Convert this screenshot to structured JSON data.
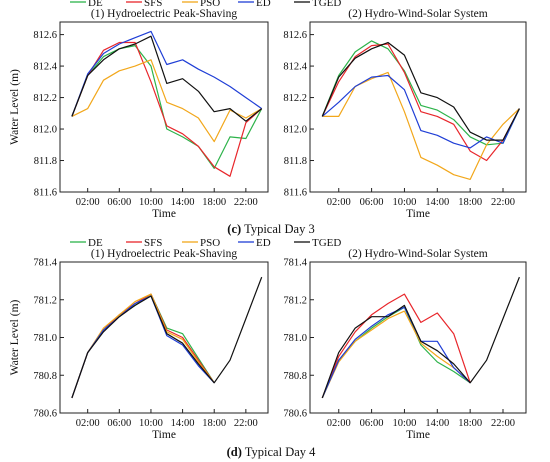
{
  "figure_captions": [
    {
      "letter": "(c)",
      "text": " Typical Day 3"
    },
    {
      "letter": "(d)",
      "text": " Typical Day 4"
    }
  ],
  "chart_data": [
    {
      "type": "line",
      "title": "(1) Hydroelectric Peak-Shaving",
      "xlabel": "Time",
      "ylabel": "Water Level (m)",
      "xticks": [
        "02:00",
        "06:00",
        "10:00",
        "14:00",
        "18:00",
        "22:00"
      ],
      "yticks": [
        "811.6",
        "811.8",
        "812.0",
        "812.2",
        "812.4",
        "812.6"
      ],
      "ylim": [
        811.6,
        812.68
      ],
      "legend": [
        "DE",
        "SFS",
        "PSO",
        "ED",
        "TGED"
      ],
      "x": [
        0,
        2,
        4,
        6,
        8,
        10,
        12,
        14,
        16,
        18,
        20,
        22,
        24
      ],
      "series": [
        {
          "name": "DE",
          "color": "#2db34a",
          "values": [
            812.08,
            812.34,
            812.46,
            812.51,
            812.53,
            812.4,
            812.0,
            811.95,
            811.89,
            811.75,
            811.95,
            811.94,
            812.13
          ]
        },
        {
          "name": "SFS",
          "color": "#e8262b",
          "values": [
            812.08,
            812.34,
            812.5,
            812.55,
            812.55,
            812.3,
            812.02,
            811.97,
            811.89,
            811.76,
            811.7,
            812.04,
            812.13
          ]
        },
        {
          "name": "PSO",
          "color": "#f2a71b",
          "values": [
            812.08,
            812.13,
            812.31,
            812.37,
            812.4,
            812.44,
            812.17,
            812.13,
            812.07,
            811.92,
            812.12,
            812.07,
            812.13
          ]
        },
        {
          "name": "ED",
          "color": "#1f3ed6",
          "values": [
            812.08,
            812.35,
            812.48,
            812.54,
            812.58,
            812.62,
            812.41,
            812.44,
            812.38,
            812.33,
            812.27,
            812.2,
            812.13
          ]
        },
        {
          "name": "TGED",
          "color": "#111111",
          "values": [
            812.08,
            812.34,
            812.44,
            812.51,
            812.54,
            812.59,
            812.29,
            812.32,
            812.24,
            812.11,
            812.13,
            812.05,
            812.13
          ]
        }
      ]
    },
    {
      "type": "line",
      "title": "(2) Hydro-Wind-Solar System",
      "xlabel": "Time",
      "ylabel": "",
      "xticks": [
        "02:00",
        "06:00",
        "10:00",
        "14:00",
        "18:00",
        "22:00"
      ],
      "yticks": [
        "811.6",
        "811.8",
        "812.0",
        "812.2",
        "812.4",
        "812.6"
      ],
      "ylim": [
        811.6,
        812.68
      ],
      "x": [
        0,
        2,
        4,
        6,
        8,
        10,
        12,
        14,
        16,
        18,
        20,
        22,
        24
      ],
      "series": [
        {
          "name": "DE",
          "color": "#2db34a",
          "values": [
            812.08,
            812.34,
            812.49,
            812.56,
            812.51,
            812.37,
            812.15,
            812.12,
            812.06,
            811.95,
            811.9,
            811.91,
            812.13
          ]
        },
        {
          "name": "SFS",
          "color": "#e8262b",
          "values": [
            812.08,
            812.3,
            812.46,
            812.53,
            812.54,
            812.36,
            812.11,
            812.08,
            812.03,
            811.86,
            811.8,
            811.93,
            812.13
          ]
        },
        {
          "name": "PSO",
          "color": "#f2a71b",
          "values": [
            812.08,
            812.08,
            812.27,
            812.32,
            812.36,
            812.11,
            811.82,
            811.77,
            811.71,
            811.68,
            811.9,
            812.03,
            812.13
          ]
        },
        {
          "name": "ED",
          "color": "#1f3ed6",
          "values": [
            812.08,
            812.17,
            812.27,
            812.33,
            812.34,
            812.25,
            811.99,
            811.96,
            811.91,
            811.88,
            811.95,
            811.91,
            812.13
          ]
        },
        {
          "name": "TGED",
          "color": "#111111",
          "values": [
            812.08,
            812.33,
            812.45,
            812.51,
            812.55,
            812.47,
            812.23,
            812.2,
            812.14,
            811.98,
            811.93,
            811.93,
            812.13
          ]
        }
      ]
    },
    {
      "type": "line",
      "title": "(1) Hydroelectric Peak-Shaving",
      "xlabel": "Time",
      "ylabel": "Water Level (m)",
      "xticks": [
        "02:00",
        "06:00",
        "10:00",
        "14:00",
        "18:00",
        "22:00"
      ],
      "yticks": [
        "780.6",
        "780.8",
        "781.0",
        "781.2",
        "781.4"
      ],
      "ylim": [
        780.6,
        781.4
      ],
      "legend": [
        "DE",
        "SFS",
        "PSO",
        "ED",
        "TGED"
      ],
      "x": [
        0,
        2,
        4,
        6,
        8,
        10,
        12,
        14,
        16,
        18,
        20,
        22,
        24
      ],
      "series": [
        {
          "name": "DE",
          "color": "#2db34a",
          "values": [
            780.68,
            780.92,
            781.04,
            781.12,
            781.17,
            781.23,
            781.05,
            781.02,
            780.89,
            780.76,
            null,
            null,
            null
          ]
        },
        {
          "name": "SFS",
          "color": "#e8262b",
          "values": [
            780.68,
            780.92,
            781.04,
            781.12,
            781.18,
            781.23,
            781.04,
            781.0,
            780.88,
            780.76,
            null,
            null,
            null
          ]
        },
        {
          "name": "PSO",
          "color": "#f2a71b",
          "values": [
            780.68,
            780.92,
            781.05,
            781.12,
            781.19,
            781.23,
            781.03,
            780.99,
            780.87,
            780.76,
            null,
            null,
            null
          ]
        },
        {
          "name": "ED",
          "color": "#1f3ed6",
          "values": [
            780.68,
            780.92,
            781.04,
            781.11,
            781.18,
            781.22,
            781.01,
            780.96,
            780.85,
            780.76,
            null,
            null,
            null
          ]
        },
        {
          "name": "TGED",
          "color": "#111111",
          "values": [
            780.68,
            780.92,
            781.03,
            781.11,
            781.17,
            781.22,
            781.02,
            780.97,
            780.86,
            780.76,
            780.88,
            781.1,
            781.32
          ]
        }
      ]
    },
    {
      "type": "line",
      "title": "(2) Hydro-Wind-Solar System",
      "xlabel": "Time",
      "ylabel": "",
      "xticks": [
        "02:00",
        "06:00",
        "10:00",
        "14:00",
        "18:00",
        "22:00"
      ],
      "yticks": [
        "780.6",
        "780.8",
        "781.0",
        "781.2",
        "781.4"
      ],
      "ylim": [
        780.6,
        781.4
      ],
      "x": [
        0,
        2,
        4,
        6,
        8,
        10,
        12,
        14,
        16,
        18,
        20,
        22,
        24
      ],
      "series": [
        {
          "name": "DE",
          "color": "#2db34a",
          "values": [
            780.68,
            780.88,
            780.98,
            781.05,
            781.11,
            781.16,
            780.96,
            780.87,
            780.82,
            780.76,
            null,
            null,
            null
          ]
        },
        {
          "name": "SFS",
          "color": "#e8262b",
          "values": [
            780.68,
            780.9,
            781.03,
            781.12,
            781.18,
            781.23,
            781.08,
            781.13,
            781.02,
            780.76,
            null,
            null,
            null
          ]
        },
        {
          "name": "PSO",
          "color": "#f2a71b",
          "values": [
            780.68,
            780.87,
            780.98,
            781.04,
            781.1,
            781.14,
            780.97,
            780.9,
            780.84,
            780.76,
            null,
            null,
            null
          ]
        },
        {
          "name": "ED",
          "color": "#1f3ed6",
          "values": [
            780.68,
            780.88,
            780.99,
            781.06,
            781.12,
            781.16,
            780.98,
            780.98,
            780.84,
            780.76,
            null,
            null,
            null
          ]
        },
        {
          "name": "TGED",
          "color": "#111111",
          "values": [
            780.68,
            780.92,
            781.05,
            781.11,
            781.11,
            781.17,
            780.98,
            780.93,
            780.86,
            780.76,
            780.88,
            781.1,
            781.32
          ]
        }
      ]
    }
  ]
}
